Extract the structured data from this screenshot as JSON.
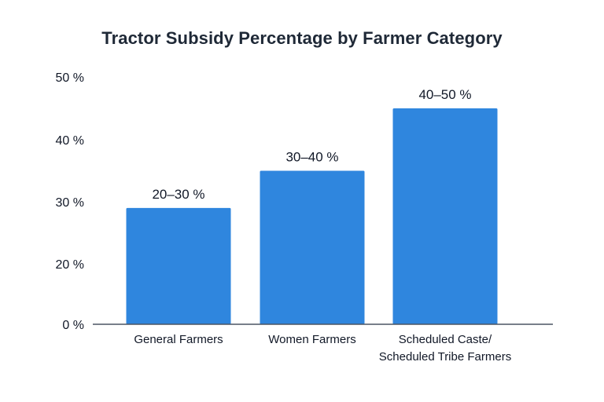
{
  "chart_data": {
    "type": "bar",
    "title": "Tractor Subsidy Percentage by Farmer Category",
    "xlabel": "",
    "ylabel": "",
    "categories": [
      [
        "General Farmers"
      ],
      [
        "Women Farmers"
      ],
      [
        "Scheduled Caste/",
        "Scheduled Tribe Farmers"
      ]
    ],
    "values": [
      29,
      35,
      45
    ],
    "data_labels": [
      "20–30 %",
      "30–40 %",
      "40–50 %"
    ],
    "yticks": [
      0,
      20,
      30,
      40,
      50
    ],
    "ytick_labels": [
      "0 %",
      "20 %",
      "30 %",
      "40 %",
      "50 %"
    ],
    "ylim": [
      0,
      50
    ],
    "grid": false,
    "bar_color": "#2f86de",
    "axis_color": "#4b5563"
  }
}
